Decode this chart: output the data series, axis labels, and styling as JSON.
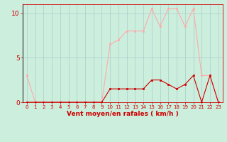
{
  "x": [
    0,
    1,
    2,
    3,
    4,
    5,
    6,
    7,
    8,
    9,
    10,
    11,
    12,
    13,
    14,
    15,
    16,
    17,
    18,
    19,
    20,
    21,
    22,
    23
  ],
  "rafales": [
    3,
    0,
    0,
    0,
    0,
    0,
    0,
    0,
    0,
    0,
    6.5,
    7,
    8,
    8,
    8,
    10.5,
    8.5,
    10.5,
    10.5,
    8.5,
    10.5,
    3,
    3,
    0
  ],
  "moyen": [
    0,
    0,
    0,
    0,
    0,
    0,
    0,
    0,
    0,
    0,
    1.5,
    1.5,
    1.5,
    1.5,
    1.5,
    2.5,
    2.5,
    2.0,
    1.5,
    2.0,
    3.0,
    0,
    3.0,
    0
  ],
  "color_rafales": "#ffaaaa",
  "color_moyen": "#cc0000",
  "bg_color": "#cceedd",
  "grid_color": "#aacccc",
  "xlabel": "Vent moyen/en rafales ( km/h )",
  "xlabel_color": "#cc0000",
  "tick_color": "#cc0000",
  "spine_color": "#cc0000",
  "ylim": [
    0,
    11
  ],
  "xlim": [
    -0.5,
    23.5
  ],
  "yticks": [
    0,
    5,
    10
  ],
  "axis_fontsize": 6.5
}
